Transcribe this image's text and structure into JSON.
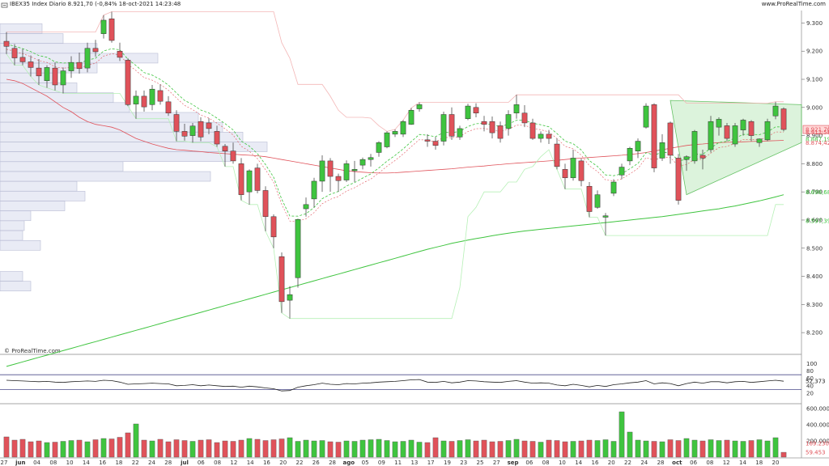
{
  "header": {
    "title": "IBEX35 Index Diario 8.921,70 (-0,84% 18-oct-2021 14:23:48",
    "brand": "www.ProRealTime.com",
    "watermark": "© ProRealTime.com",
    "minus_icon": "minus-icon"
  },
  "colors": {
    "up": "#3fc43f",
    "down": "#e0525a",
    "ma200": "#3fc43f",
    "ma50": "#e0525a",
    "bg": "#ffffff",
    "profile": "#e9ebf5",
    "triangle": "#d6f2d6"
  },
  "chart_data": [
    {
      "type": "candlestick",
      "title": "IBEX35 Index Diario",
      "ylim": [
        8140,
        9330
      ],
      "y_ticks": [
        8200,
        8300,
        8400,
        8500,
        8600,
        8700,
        8800,
        8900,
        9000,
        9100,
        9200,
        9300
      ],
      "y_tick_labels": [
        "8.200",
        "8.300",
        "8.400",
        "8.500",
        "8.600",
        "8.700",
        "8.800",
        "8.900",
        "9.000",
        "9.100",
        "9.200",
        "9.300"
      ],
      "x_tick_labels": [
        "27",
        "jun",
        "04",
        "08",
        "10",
        "14",
        "16",
        "18",
        "22",
        "24",
        "28",
        "jul",
        "06",
        "08",
        "12",
        "14",
        "16",
        "20",
        "22",
        "26",
        "28",
        "ago",
        "05",
        "09",
        "11",
        "13",
        "17",
        "19",
        "23",
        "25",
        "27",
        "sep",
        "06",
        "08",
        "10",
        "14",
        "16",
        "20",
        "22",
        "24",
        "28",
        "oct",
        "06",
        "08",
        "12",
        "14",
        "18",
        "20"
      ],
      "price_labels": [
        {
          "text": "8.921,70",
          "value": 8921.7,
          "color": "#e0525a",
          "highlight": true
        },
        {
          "text": "8.912,58",
          "value": 8912,
          "color": "#e0525a"
        },
        {
          "text": "8.887,19",
          "value": 8887,
          "color": "#3fc43f"
        },
        {
          "text": "8.874,42",
          "value": 8874,
          "color": "#e0525a"
        },
        {
          "text": "8.698,68",
          "value": 8699,
          "color": "#3fc43f"
        },
        {
          "text": "8.597,39",
          "value": 8597,
          "color": "#3fc43f"
        }
      ],
      "candles": [
        [
          9235,
          9268,
          9190,
          9217
        ],
        [
          9210,
          9225,
          9150,
          9176
        ],
        [
          9178,
          9208,
          9150,
          9162
        ],
        [
          9162,
          9185,
          9110,
          9142
        ],
        [
          9140,
          9172,
          9080,
          9112
        ],
        [
          9095,
          9150,
          9070,
          9142
        ],
        [
          9140,
          9160,
          9060,
          9080
        ],
        [
          9080,
          9142,
          9050,
          9130
        ],
        [
          9130,
          9182,
          9105,
          9160
        ],
        [
          9160,
          9195,
          9120,
          9138
        ],
        [
          9140,
          9230,
          9125,
          9210
        ],
        [
          9210,
          9240,
          9180,
          9198
        ],
        [
          9262,
          9328,
          9245,
          9310
        ],
        [
          9315,
          9340,
          9230,
          9238
        ],
        [
          9200,
          9230,
          9165,
          9178
        ],
        [
          9168,
          9175,
          9005,
          9010
        ],
        [
          9012,
          9060,
          8960,
          9040
        ],
        [
          9040,
          9060,
          8985,
          9002
        ],
        [
          9010,
          9080,
          8990,
          9065
        ],
        [
          9060,
          9082,
          9010,
          9022
        ],
        [
          9020,
          9040,
          8970,
          8980
        ],
        [
          8975,
          8990,
          8880,
          8915
        ],
        [
          8915,
          8942,
          8882,
          8898
        ],
        [
          8900,
          8945,
          8875,
          8934
        ],
        [
          8950,
          8965,
          8880,
          8895
        ],
        [
          8945,
          8962,
          8905,
          8925
        ],
        [
          8915,
          8935,
          8860,
          8870
        ],
        [
          8862,
          8870,
          8790,
          8845
        ],
        [
          8845,
          8875,
          8800,
          8810
        ],
        [
          8800,
          8820,
          8670,
          8690
        ],
        [
          8700,
          8780,
          8655,
          8775
        ],
        [
          8785,
          8800,
          8695,
          8705
        ],
        [
          8705,
          8720,
          8560,
          8612
        ],
        [
          8612,
          8620,
          8500,
          8540
        ],
        [
          8470,
          8485,
          8270,
          8310
        ],
        [
          8315,
          8365,
          8250,
          8335
        ],
        [
          8395,
          8605,
          8360,
          8602
        ],
        [
          8640,
          8680,
          8612,
          8655
        ],
        [
          8675,
          8750,
          8645,
          8738
        ],
        [
          8738,
          8830,
          8700,
          8810
        ],
        [
          8810,
          8820,
          8700,
          8755
        ],
        [
          8755,
          8765,
          8700,
          8740
        ],
        [
          8742,
          8812,
          8735,
          8800
        ],
        [
          8775,
          8810,
          8735,
          8780
        ],
        [
          8795,
          8822,
          8780,
          8815
        ],
        [
          8815,
          8835,
          8790,
          8822
        ],
        [
          8840,
          8880,
          8825,
          8875
        ],
        [
          8860,
          8915,
          8855,
          8910
        ],
        [
          8905,
          8922,
          8895,
          8915
        ],
        [
          8905,
          8955,
          8895,
          8950
        ],
        [
          8940,
          8998,
          8938,
          8990
        ],
        [
          8995,
          9018,
          8985,
          9010
        ],
        [
          8885,
          8905,
          8860,
          8880
        ],
        [
          8880,
          8895,
          8850,
          8865
        ],
        [
          8880,
          8985,
          8865,
          8975
        ],
        [
          8975,
          9000,
          8885,
          8898
        ],
        [
          8895,
          8935,
          8885,
          8925
        ],
        [
          8960,
          9013,
          8955,
          9005
        ],
        [
          9000,
          9015,
          8965,
          8980
        ],
        [
          8950,
          8970,
          8915,
          8940
        ],
        [
          8950,
          8968,
          8890,
          8910
        ],
        [
          8935,
          8950,
          8875,
          8890
        ],
        [
          8925,
          8990,
          8900,
          8975
        ],
        [
          8980,
          9045,
          8960,
          9010
        ],
        [
          8980,
          9008,
          8930,
          8945
        ],
        [
          8945,
          8960,
          8885,
          8890
        ],
        [
          8890,
          8915,
          8875,
          8905
        ],
        [
          8905,
          8920,
          8870,
          8890
        ],
        [
          8870,
          8890,
          8780,
          8790
        ],
        [
          8780,
          8800,
          8710,
          8750
        ],
        [
          8750,
          8850,
          8740,
          8820
        ],
        [
          8810,
          8818,
          8720,
          8740
        ],
        [
          8720,
          8735,
          8610,
          8630
        ],
        [
          8645,
          8705,
          8640,
          8690
        ],
        [
          8610,
          8625,
          8545,
          8615
        ],
        [
          8695,
          8745,
          8685,
          8735
        ],
        [
          8760,
          8800,
          8745,
          8788
        ],
        [
          8810,
          8860,
          8795,
          8855
        ],
        [
          8845,
          8890,
          8820,
          8880
        ],
        [
          8930,
          9015,
          8925,
          9005
        ],
        [
          9010,
          9015,
          8770,
          8785
        ],
        [
          8820,
          8905,
          8810,
          8875
        ],
        [
          8945,
          8950,
          8800,
          8830
        ],
        [
          8820,
          8835,
          8655,
          8670
        ],
        [
          8815,
          8830,
          8775,
          8825
        ],
        [
          8810,
          8920,
          8800,
          8915
        ],
        [
          8830,
          8850,
          8780,
          8820
        ],
        [
          8850,
          8970,
          8840,
          8950
        ],
        [
          8930,
          8965,
          8900,
          8958
        ],
        [
          8935,
          8945,
          8880,
          8890
        ],
        [
          8870,
          8945,
          8860,
          8935
        ],
        [
          8920,
          8960,
          8900,
          8955
        ],
        [
          8950,
          8955,
          8880,
          8900
        ],
        [
          8875,
          8890,
          8860,
          8888
        ],
        [
          8885,
          8960,
          8880,
          8950
        ],
        [
          8970,
          9020,
          8958,
          9005
        ],
        [
          8995,
          9000,
          8915,
          8921.7
        ]
      ],
      "ma50": [
        9100,
        9095,
        9085,
        9070,
        9055,
        9040,
        9020,
        9000,
        8985,
        8965,
        8950,
        8940,
        8935,
        8930,
        8920,
        8905,
        8890,
        8880,
        8870,
        8862,
        8855,
        8850,
        8848,
        8845,
        8843,
        8840,
        8838,
        8836,
        8834,
        8832,
        8830,
        8828,
        8825,
        8820,
        8815,
        8810,
        8805,
        8800,
        8795,
        8790,
        8785,
        8780,
        8775,
        8772,
        8770,
        8768,
        8767,
        8767,
        8768,
        8770,
        8772,
        8774,
        8776,
        8778,
        8780,
        8782,
        8785,
        8788,
        8790,
        8792,
        8795,
        8797,
        8800,
        8802,
        8804,
        8806,
        8808,
        8810,
        8812,
        8815,
        8818,
        8820,
        8822,
        8824,
        8826,
        8828,
        8830,
        8833,
        8836,
        8840,
        8845,
        8850,
        8855,
        8860,
        8865,
        8868,
        8870,
        8873,
        8875,
        8876,
        8877,
        8878,
        8879,
        8880,
        8881,
        8882,
        8883
      ],
      "ma200": [
        8080,
        8088,
        8096,
        8104,
        8112,
        8120,
        8128,
        8136,
        8144,
        8152,
        8160,
        8168,
        8176,
        8184,
        8192,
        8200,
        8208,
        8216,
        8224,
        8232,
        8240,
        8248,
        8256,
        8264,
        8272,
        8280,
        8288,
        8296,
        8304,
        8312,
        8320,
        8328,
        8336,
        8344,
        8352,
        8360,
        8368,
        8376,
        8384,
        8392,
        8400,
        8408,
        8416,
        8424,
        8432,
        8440,
        8448,
        8456,
        8464,
        8472,
        8480,
        8488,
        8496,
        8503,
        8510,
        8517,
        8523,
        8529,
        8534,
        8539,
        8544,
        8549,
        8553,
        8557,
        8561,
        8564,
        8567,
        8570,
        8573,
        8576,
        8579,
        8582,
        8585,
        8588,
        8591,
        8594,
        8597,
        8600,
        8603,
        8606,
        8609,
        8612,
        8616,
        8620,
        8624,
        8628,
        8632,
        8636,
        8640,
        8645,
        8650,
        8656,
        8662,
        8668,
        8675,
        8682,
        8690
      ]
    },
    {
      "type": "line",
      "title": "",
      "ylim": [
        0,
        110
      ],
      "y_ticks": [
        100,
        80,
        60,
        40,
        20
      ],
      "y_tick_labels": [
        "100",
        "80",
        "60",
        "40",
        "20"
      ],
      "series": [
        {
          "name": "",
          "last_label": "52,373",
          "values": [
            55,
            54,
            53,
            52,
            51,
            52,
            50,
            49,
            51,
            52,
            53,
            52,
            55,
            54,
            50,
            44,
            45,
            46,
            47,
            46,
            45,
            40,
            41,
            43,
            40,
            42,
            40,
            38,
            39,
            36,
            39,
            37,
            34,
            32,
            26,
            27,
            36,
            40,
            43,
            47,
            44,
            43,
            46,
            45,
            47,
            48,
            50,
            51,
            52,
            54,
            56,
            57,
            50,
            49,
            52,
            48,
            50,
            54,
            53,
            51,
            50,
            49,
            52,
            54,
            50,
            47,
            48,
            47,
            42,
            40,
            44,
            41,
            37,
            41,
            38,
            43,
            45,
            48,
            50,
            54,
            45,
            48,
            46,
            40,
            46,
            50,
            47,
            51,
            51,
            48,
            51,
            52,
            49,
            51,
            53,
            55,
            52.373
          ]
        }
      ]
    },
    {
      "type": "bar",
      "title": "",
      "ylim": [
        0,
        620000
      ],
      "y_ticks": [
        600000,
        400000,
        200000
      ],
      "y_tick_labels": [
        "600.000",
        "400.000",
        "200.000"
      ],
      "value_labels": [
        {
          "text": "169.230",
          "color": "#e0525a"
        },
        {
          "text": "59.453",
          "color": "#e0525a"
        }
      ],
      "values": [
        250000,
        210000,
        220000,
        190000,
        200000,
        180000,
        185000,
        195000,
        205000,
        210000,
        190000,
        215000,
        230000,
        225000,
        245000,
        300000,
        410000,
        210000,
        200000,
        220000,
        190000,
        215000,
        205000,
        195000,
        210000,
        215000,
        180000,
        200000,
        195000,
        210000,
        230000,
        220000,
        205000,
        215000,
        225000,
        240000,
        195000,
        210000,
        200000,
        205000,
        190000,
        185000,
        200000,
        195000,
        210000,
        215000,
        220000,
        205000,
        190000,
        195000,
        210000,
        185000,
        180000,
        240000,
        200000,
        195000,
        205000,
        215000,
        200000,
        210000,
        190000,
        195000,
        205000,
        220000,
        200000,
        195000,
        185000,
        210000,
        205000,
        190000,
        195000,
        200000,
        210000,
        205000,
        215000,
        195000,
        560000,
        310000,
        210000,
        200000,
        195000,
        190000,
        215000,
        205000,
        230000,
        210000,
        200000,
        215000,
        205000,
        210000,
        200000,
        195000,
        205000,
        215000,
        200000,
        240000,
        59453
      ]
    }
  ]
}
